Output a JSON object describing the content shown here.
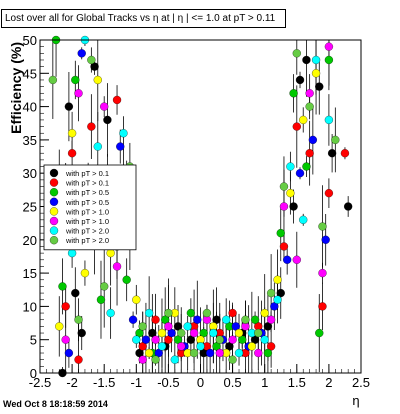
{
  "title": "Lost over all for Global Tracks vs η at | η | <= 1.0 at pT > 0.11",
  "footer_timestamp": "Wed Oct  8 18:18:59 2014",
  "chart_data": {
    "type": "scatter",
    "xlabel": "η",
    "ylabel": "Efficiency (%)",
    "xlim": [
      -2.5,
      2.5
    ],
    "ylim": [
      0,
      50
    ],
    "xticks": [
      -2.5,
      -2,
      -1.5,
      -1,
      -0.5,
      0,
      0.5,
      1,
      1.5,
      2,
      2.5
    ],
    "yticks": [
      0,
      5,
      10,
      15,
      20,
      25,
      30,
      35,
      40,
      45,
      50
    ],
    "legend_position": "middle-left",
    "series": [
      {
        "name": "with pT > 0.1",
        "color": "#000000",
        "points": [
          [
            -2.15,
            0
          ],
          [
            -2.05,
            40
          ],
          [
            -1.95,
            12
          ],
          [
            -1.85,
            6
          ],
          [
            -1.65,
            46
          ],
          [
            -1.45,
            38
          ],
          [
            -1.25,
            23
          ],
          [
            -1.15,
            29
          ],
          [
            -0.95,
            3
          ],
          [
            -0.75,
            6
          ],
          [
            -0.55,
            4
          ],
          [
            -0.35,
            7
          ],
          [
            -0.15,
            5
          ],
          [
            0.05,
            3
          ],
          [
            0.25,
            8
          ],
          [
            0.45,
            4
          ],
          [
            0.65,
            6
          ],
          [
            0.85,
            5
          ],
          [
            1.05,
            7
          ],
          [
            1.25,
            12
          ],
          [
            1.45,
            25
          ],
          [
            1.55,
            44
          ],
          [
            1.65,
            47
          ],
          [
            1.85,
            43
          ],
          [
            2.05,
            33
          ],
          [
            2.3,
            25
          ]
        ]
      },
      {
        "name": "with pT > 0.1",
        "color": "#ff0000",
        "points": [
          [
            -2.1,
            10
          ],
          [
            -2.0,
            33
          ],
          [
            -1.9,
            2
          ],
          [
            -1.7,
            37
          ],
          [
            -1.5,
            22
          ],
          [
            -1.3,
            41
          ],
          [
            -1.1,
            27
          ],
          [
            -0.9,
            4
          ],
          [
            -0.7,
            8
          ],
          [
            -0.5,
            5
          ],
          [
            -0.3,
            3
          ],
          [
            -0.1,
            7
          ],
          [
            0.1,
            4
          ],
          [
            0.3,
            6
          ],
          [
            0.5,
            9
          ],
          [
            0.7,
            3
          ],
          [
            0.9,
            7
          ],
          [
            1.1,
            4
          ],
          [
            1.3,
            19
          ],
          [
            1.5,
            37
          ],
          [
            1.7,
            33
          ],
          [
            1.9,
            10
          ],
          [
            2.0,
            27
          ],
          [
            2.25,
            33
          ]
        ]
      },
      {
        "name": "with pT > 0.5",
        "color": "#00c800",
        "points": [
          [
            -2.25,
            50
          ],
          [
            -2.15,
            13
          ],
          [
            -1.95,
            44
          ],
          [
            -1.75,
            30
          ],
          [
            -1.55,
            11
          ],
          [
            -1.35,
            26
          ],
          [
            -1.15,
            14
          ],
          [
            -0.95,
            6
          ],
          [
            -0.75,
            3
          ],
          [
            -0.55,
            8
          ],
          [
            -0.35,
            5
          ],
          [
            -0.15,
            9
          ],
          [
            0.05,
            6
          ],
          [
            0.25,
            4
          ],
          [
            0.45,
            7
          ],
          [
            0.65,
            5
          ],
          [
            0.85,
            8
          ],
          [
            1.05,
            3
          ],
          [
            1.25,
            21
          ],
          [
            1.45,
            42
          ],
          [
            1.65,
            31
          ],
          [
            1.85,
            6
          ],
          [
            2.0,
            47
          ]
        ]
      },
      {
        "name": "with pT > 0.5",
        "color": "#0000ff",
        "points": [
          [
            -2.05,
            3
          ],
          [
            -1.85,
            48
          ],
          [
            -1.65,
            20
          ],
          [
            -1.45,
            29
          ],
          [
            -1.25,
            34
          ],
          [
            -1.05,
            8
          ],
          [
            -0.85,
            5
          ],
          [
            -0.65,
            3
          ],
          [
            -0.45,
            6
          ],
          [
            -0.25,
            4
          ],
          [
            -0.05,
            8
          ],
          [
            0.15,
            3
          ],
          [
            0.35,
            5
          ],
          [
            0.55,
            7
          ],
          [
            0.75,
            4
          ],
          [
            0.95,
            6
          ],
          [
            1.15,
            10
          ],
          [
            1.35,
            17
          ],
          [
            1.55,
            30
          ],
          [
            1.75,
            35
          ],
          [
            1.95,
            20
          ]
        ]
      },
      {
        "name": "with pT > 1.0",
        "color": "#ffff00",
        "points": [
          [
            -2.2,
            7
          ],
          [
            -2.0,
            36
          ],
          [
            -1.8,
            15
          ],
          [
            -1.6,
            44
          ],
          [
            -1.4,
            18
          ],
          [
            -1.2,
            30
          ],
          [
            -1.0,
            11
          ],
          [
            -0.8,
            3
          ],
          [
            -0.6,
            6
          ],
          [
            -0.4,
            9
          ],
          [
            -0.2,
            3
          ],
          [
            0.0,
            5
          ],
          [
            0.2,
            7
          ],
          [
            0.4,
            3
          ],
          [
            0.6,
            6
          ],
          [
            0.8,
            4
          ],
          [
            1.0,
            9
          ],
          [
            1.2,
            14
          ],
          [
            1.4,
            27
          ],
          [
            1.6,
            38
          ],
          [
            1.8,
            45
          ]
        ]
      },
      {
        "name": "with pT > 1.0",
        "color": "#ff00ff",
        "points": [
          [
            -2.3,
            24
          ],
          [
            -2.1,
            5
          ],
          [
            -1.9,
            42
          ],
          [
            -1.7,
            28
          ],
          [
            -1.5,
            40
          ],
          [
            -1.3,
            16
          ],
          [
            -1.1,
            20
          ],
          [
            -0.9,
            2
          ],
          [
            -0.7,
            5
          ],
          [
            -0.5,
            7
          ],
          [
            -0.3,
            4
          ],
          [
            -0.1,
            6
          ],
          [
            0.1,
            8
          ],
          [
            0.3,
            3
          ],
          [
            0.5,
            5
          ],
          [
            0.7,
            7
          ],
          [
            0.9,
            3
          ],
          [
            1.1,
            8
          ],
          [
            1.3,
            25
          ],
          [
            1.5,
            17
          ],
          [
            1.7,
            42
          ],
          [
            1.9,
            15
          ],
          [
            2.0,
            49
          ]
        ]
      },
      {
        "name": "with pT > 2.0",
        "color": "#00ffff",
        "points": [
          [
            -2.2,
            30
          ],
          [
            -2.0,
            18
          ],
          [
            -1.8,
            50
          ],
          [
            -1.6,
            34
          ],
          [
            -1.4,
            9
          ],
          [
            -1.2,
            36
          ],
          [
            -1.0,
            5
          ],
          [
            -0.8,
            9
          ],
          [
            -0.6,
            4
          ],
          [
            -0.4,
            2
          ],
          [
            -0.2,
            7
          ],
          [
            0.0,
            4
          ],
          [
            0.2,
            6
          ],
          [
            0.4,
            8
          ],
          [
            0.6,
            3
          ],
          [
            0.8,
            6
          ],
          [
            1.0,
            5
          ],
          [
            1.2,
            11
          ],
          [
            1.4,
            31
          ],
          [
            1.6,
            23
          ],
          [
            1.8,
            47
          ],
          [
            2.0,
            38
          ]
        ]
      },
      {
        "name": "with pT > 2.0",
        "color": "#66cc44",
        "points": [
          [
            -2.3,
            44
          ],
          [
            -2.1,
            27
          ],
          [
            -1.9,
            8
          ],
          [
            -1.7,
            47
          ],
          [
            -1.5,
            13
          ],
          [
            -1.3,
            19
          ],
          [
            -1.1,
            31
          ],
          [
            -0.9,
            7
          ],
          [
            -0.7,
            2
          ],
          [
            -0.5,
            9
          ],
          [
            -0.3,
            6
          ],
          [
            -0.1,
            3
          ],
          [
            0.1,
            9
          ],
          [
            0.3,
            5
          ],
          [
            0.5,
            2
          ],
          [
            0.7,
            8
          ],
          [
            0.9,
            6
          ],
          [
            1.1,
            12
          ],
          [
            1.3,
            28
          ],
          [
            1.5,
            48
          ],
          [
            1.7,
            40
          ],
          [
            1.9,
            22
          ],
          [
            2.1,
            35
          ]
        ]
      }
    ]
  }
}
